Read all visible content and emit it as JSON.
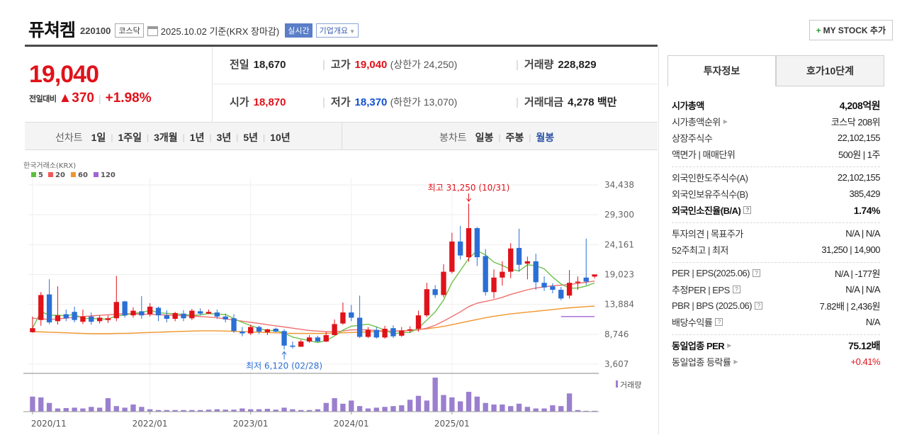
{
  "header": {
    "name": "퓨쳐켐",
    "code": "220100",
    "market": "코스닥",
    "date_text": "2025.10.02 기준(KRX 장마감)",
    "realtime_label": "실시간",
    "overview_label": "기업개요",
    "mystock_label": "MY STOCK 추가"
  },
  "price": {
    "current": "19,040",
    "compare_label": "전일대비",
    "change": "370",
    "change_pct": "+1.98%"
  },
  "stats": {
    "prev_label": "전일",
    "prev": "18,670",
    "high_label": "고가",
    "high": "19,040",
    "upper_limit": "(상한가 24,250)",
    "volume_label": "거래량",
    "volume": "228,829",
    "open_label": "시가",
    "open": "18,870",
    "low_label": "저가",
    "low": "18,370",
    "lower_limit": "(하한가 13,070)",
    "amount_label": "거래대금",
    "amount": "4,278",
    "amount_unit": "백만"
  },
  "chart_tabs": {
    "line_label": "선차트",
    "line_periods": [
      "1일",
      "1주일",
      "3개월",
      "1년",
      "3년",
      "5년",
      "10년"
    ],
    "candle_label": "봉차트",
    "candle_periods": [
      "일봉",
      "주봉",
      "월봉"
    ],
    "active_candle": "월봉"
  },
  "right_panel": {
    "tab_invest": "투자정보",
    "tab_orderbook": "호가10단계",
    "sections": [
      [
        {
          "k": "시가총액",
          "v": "4,208억원",
          "bold": true
        },
        {
          "k": "시가총액순위",
          "v": "코스닥 208위"
        },
        {
          "k": "상장주식수",
          "v": "22,102,155"
        },
        {
          "k": "액면가 | 매매단위",
          "v": "500원 | 1주"
        }
      ],
      [
        {
          "k": "외국인한도주식수(A)",
          "v": "22,102,155"
        },
        {
          "k": "외국인보유주식수(B)",
          "v": "385,429"
        },
        {
          "k": "외국인소진율(B/A)",
          "v": "1.74%",
          "bold": true
        }
      ],
      [
        {
          "k": "투자의견 | 목표주가",
          "v": "N/A | N/A"
        },
        {
          "k": "52주최고 | 최저",
          "v": "31,250 | 14,900"
        }
      ],
      [
        {
          "k": "PER | EPS(2025.06)",
          "v": "N/A | -177원"
        },
        {
          "k": "추정PER | EPS",
          "v": "N/A | N/A"
        },
        {
          "k": "PBR | BPS (2025.06)",
          "v": "7.82배 | 2,436원"
        },
        {
          "k": "배당수익률",
          "v": "N/A"
        }
      ],
      [
        {
          "k": "동일업종 PER",
          "v": "75.12배",
          "bold": true
        },
        {
          "k": "동일업종 등락률",
          "v": "+0.41%",
          "red": true
        }
      ]
    ]
  },
  "chart_data": {
    "type": "candlestick",
    "source_label": "한국거래소(KRX)",
    "ma_legend": [
      {
        "name": "5",
        "color": "#5cbf3c"
      },
      {
        "name": "20",
        "color": "#ef5a5a"
      },
      {
        "name": "60",
        "color": "#f0952b"
      },
      {
        "name": "120",
        "color": "#a064d6"
      }
    ],
    "y_ticks": [
      "34,438",
      "29,300",
      "24,161",
      "19,023",
      "13,884",
      "8,746",
      "3,607"
    ],
    "y_range": [
      3607,
      34438
    ],
    "x_ticks": [
      "2020/11",
      "2022/01",
      "2023/01",
      "2024/01",
      "2025/01"
    ],
    "max_annotation": "최고 31,250 (10/31)",
    "min_annotation": "최저 6,120 (02/28)",
    "volume_label": "거래량",
    "up_color": "#e0121a",
    "down_color": "#2b6fd6",
    "candles": [
      [
        9100,
        11800,
        9800,
        9000,
        1
      ],
      [
        11200,
        16000,
        15500,
        10200,
        1
      ],
      [
        15600,
        18200,
        10800,
        10500,
        0
      ],
      [
        11000,
        17000,
        12000,
        10400,
        1
      ],
      [
        12200,
        13000,
        11500,
        11000,
        0
      ],
      [
        12600,
        13500,
        11200,
        10800,
        0
      ],
      [
        10900,
        13000,
        11800,
        10500,
        1
      ],
      [
        11800,
        12500,
        10900,
        10400,
        0
      ],
      [
        11000,
        12000,
        11600,
        10600,
        1
      ],
      [
        11500,
        12000,
        11200,
        10700,
        1
      ],
      [
        11500,
        18800,
        14300,
        11000,
        1
      ],
      [
        14400,
        14500,
        12000,
        11600,
        0
      ],
      [
        12000,
        13400,
        12800,
        11600,
        1
      ],
      [
        12700,
        15300,
        12000,
        11400,
        0
      ],
      [
        12200,
        14100,
        13500,
        11800,
        1
      ],
      [
        13300,
        13500,
        12000,
        11000,
        0
      ],
      [
        12000,
        12900,
        11400,
        10800,
        0
      ],
      [
        11400,
        12600,
        12400,
        11000,
        1
      ],
      [
        12300,
        12900,
        11500,
        11000,
        0
      ],
      [
        11500,
        13100,
        12800,
        11200,
        1
      ],
      [
        12700,
        13200,
        12300,
        12000,
        0
      ],
      [
        12300,
        13000,
        12600,
        12200,
        1
      ],
      [
        12500,
        13000,
        11800,
        11400,
        0
      ],
      [
        11800,
        12300,
        11300,
        10800,
        0
      ],
      [
        11500,
        12200,
        9300,
        9000,
        0
      ],
      [
        9200,
        10000,
        8900,
        8400,
        0
      ],
      [
        8900,
        10400,
        10000,
        8600,
        1
      ],
      [
        10000,
        10200,
        9200,
        8800,
        0
      ],
      [
        9100,
        9700,
        9600,
        8600,
        1
      ],
      [
        9700,
        9900,
        9200,
        9100,
        0
      ],
      [
        9300,
        9600,
        6800,
        6120,
        0
      ],
      [
        6800,
        7500,
        6600,
        6300,
        0
      ],
      [
        6600,
        7800,
        7500,
        6600,
        1
      ],
      [
        7500,
        8600,
        8200,
        7300,
        1
      ],
      [
        8200,
        8500,
        7500,
        7400,
        0
      ],
      [
        7500,
        9200,
        8600,
        7400,
        1
      ],
      [
        8600,
        11300,
        10500,
        8600,
        1
      ],
      [
        10600,
        14200,
        12500,
        10400,
        1
      ],
      [
        12500,
        13800,
        11600,
        11000,
        0
      ],
      [
        11600,
        15400,
        8300,
        8100,
        0
      ],
      [
        8300,
        10000,
        9500,
        8100,
        1
      ],
      [
        9500,
        10000,
        8200,
        8000,
        0
      ],
      [
        8200,
        10200,
        9700,
        8000,
        1
      ],
      [
        9800,
        10300,
        8400,
        8100,
        0
      ],
      [
        8500,
        10000,
        9400,
        8300,
        1
      ],
      [
        9400,
        10100,
        9600,
        9000,
        1
      ],
      [
        9700,
        12800,
        12000,
        9200,
        1
      ],
      [
        12000,
        17600,
        16500,
        11700,
        1
      ],
      [
        16500,
        17200,
        15500,
        15000,
        0
      ],
      [
        15500,
        20800,
        19500,
        15100,
        1
      ],
      [
        19500,
        26200,
        24700,
        19200,
        1
      ],
      [
        24700,
        27400,
        22300,
        21600,
        0
      ],
      [
        22000,
        31250,
        27000,
        21200,
        1
      ],
      [
        27000,
        27200,
        22000,
        20500,
        0
      ],
      [
        22200,
        23400,
        16000,
        15400,
        0
      ],
      [
        16000,
        19900,
        18500,
        14900,
        1
      ],
      [
        18500,
        21300,
        19500,
        17100,
        1
      ],
      [
        19500,
        24400,
        23500,
        18400,
        1
      ],
      [
        23600,
        26900,
        20700,
        19500,
        0
      ],
      [
        20900,
        22100,
        21300,
        18200,
        1
      ],
      [
        21300,
        22600,
        17700,
        16400,
        0
      ],
      [
        17600,
        18700,
        16800,
        16200,
        0
      ],
      [
        17000,
        17500,
        16400,
        15800,
        0
      ],
      [
        16400,
        16900,
        14900,
        14600,
        0
      ],
      [
        15400,
        19800,
        17600,
        14900,
        1
      ],
      [
        17600,
        18700,
        17800,
        16400,
        1
      ],
      [
        17800,
        25200,
        18500,
        17200,
        0
      ],
      [
        18670,
        19040,
        19040,
        18370,
        1
      ]
    ],
    "ma20": [
      11500,
      11400,
      11300,
      11400,
      11500,
      11700,
      11800,
      11900,
      12000,
      12100,
      12200,
      12300,
      12250,
      12200,
      12200,
      12100,
      12050,
      12000,
      11950,
      11900,
      11800,
      11700,
      11600,
      11400,
      11200,
      11000,
      10800,
      10600,
      10400,
      10200,
      10000,
      9800,
      9600,
      9400,
      9300,
      9200,
      9200,
      9300,
      9500,
      9500,
      9500,
      9400,
      9300,
      9300,
      9300,
      9400,
      9500,
      9800,
      10300,
      11000,
      11800,
      12600,
      13500,
      14100,
      14400,
      14700,
      15100,
      15600,
      16000,
      16400,
      16700,
      16900,
      17100,
      17200,
      17300,
      17500,
      17700,
      17900
    ],
    "ma60": [
      9200,
      9150,
      9100,
      9050,
      9000,
      8950,
      8900,
      8850,
      8850,
      8850,
      8900,
      8900,
      8950,
      9000,
      9050,
      9100,
      9150,
      9200,
      9250,
      9300,
      9350,
      9350,
      9350,
      9300,
      9250,
      9200,
      9150,
      9100,
      9050,
      9000,
      8950,
      8900,
      8900,
      8900,
      8900,
      8900,
      8950,
      9000,
      9050,
      9100,
      9150,
      9200,
      9250,
      9300,
      9350,
      9450,
      9550,
      9700,
      9900,
      10100,
      10400,
      10700,
      11000,
      11300,
      11600,
      11850,
      12050,
      12250,
      12400,
      12550,
      12700,
      12850,
      13000,
      13150,
      13300,
      13400,
      13500,
      13600
    ],
    "ma120_start_index": 63,
    "ma120": [
      11800,
      11800,
      11800,
      11800,
      11800
    ],
    "volumes": [
      38,
      36,
      22,
      8,
      9,
      10,
      8,
      12,
      10,
      34,
      14,
      10,
      18,
      12,
      6,
      4,
      4,
      4,
      4,
      4,
      4,
      5,
      6,
      5,
      5,
      8,
      6,
      6,
      7,
      5,
      10,
      6,
      4,
      4,
      6,
      22,
      34,
      20,
      28,
      14,
      8,
      10,
      12,
      14,
      16,
      30,
      40,
      28,
      86,
      42,
      36,
      26,
      50,
      38,
      22,
      18,
      18,
      14,
      20,
      12,
      8,
      8,
      16,
      14,
      46,
      4,
      2,
      2
    ]
  }
}
